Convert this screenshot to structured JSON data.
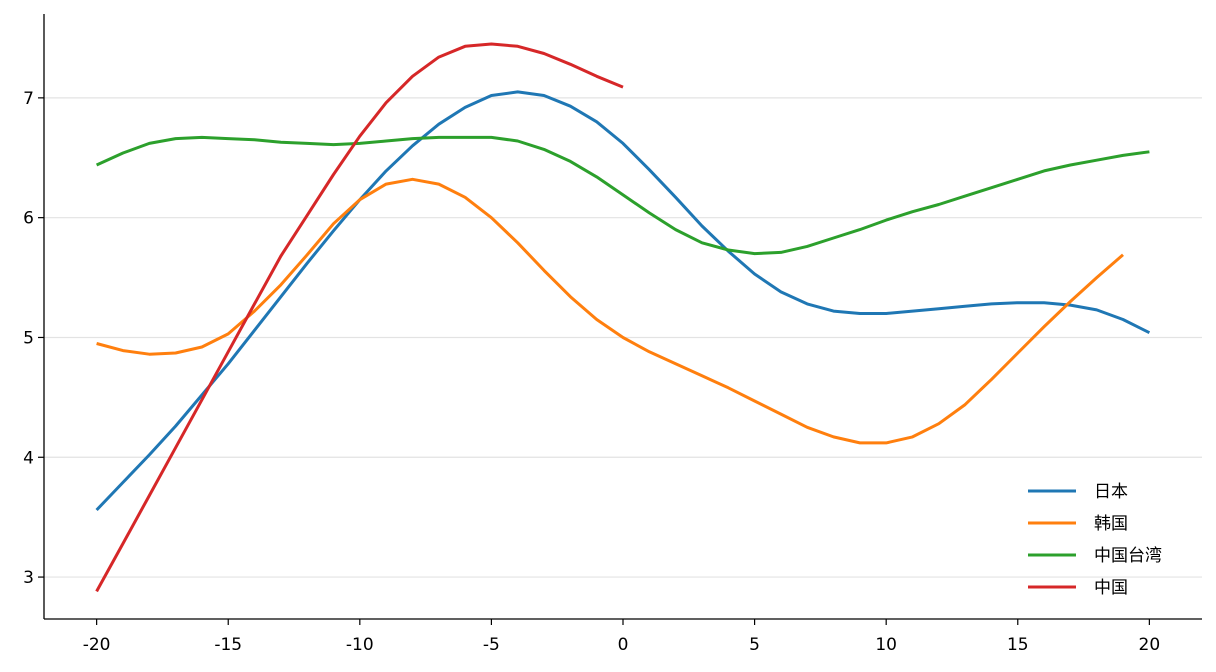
{
  "chart_data": {
    "type": "line",
    "title": "",
    "xlabel": "",
    "ylabel": "",
    "xlim": [
      -22,
      22
    ],
    "ylim": [
      2.65,
      7.7
    ],
    "xticks": [
      -20,
      -15,
      -10,
      -5,
      0,
      5,
      10,
      15,
      20
    ],
    "yticks": [
      3,
      4,
      5,
      6,
      7
    ],
    "xtick_labels": [
      "-20",
      "-15",
      "-10",
      "-5",
      "0",
      "5",
      "10",
      "15",
      "20"
    ],
    "ytick_labels": [
      "3",
      "4",
      "5",
      "6",
      "7"
    ],
    "grid": "horizontal",
    "legend_position": "lower-right",
    "series": [
      {
        "name": "日本",
        "color": "#1f77b4",
        "x": [
          -20,
          -19,
          -18,
          -17,
          -16,
          -15,
          -14,
          -13,
          -12,
          -11,
          -10,
          -9,
          -8,
          -7,
          -6,
          -5,
          -4,
          -3,
          -2,
          -1,
          0,
          1,
          2,
          3,
          4,
          5,
          6,
          7,
          8,
          9,
          10,
          11,
          12,
          13,
          14,
          15,
          16,
          17,
          18,
          19,
          20
        ],
        "y": [
          3.56,
          3.79,
          4.02,
          4.26,
          4.52,
          4.78,
          5.06,
          5.34,
          5.62,
          5.89,
          6.15,
          6.39,
          6.6,
          6.78,
          6.92,
          7.02,
          7.05,
          7.02,
          6.93,
          6.8,
          6.62,
          6.4,
          6.17,
          5.93,
          5.72,
          5.53,
          5.38,
          5.28,
          5.22,
          5.2,
          5.2,
          5.22,
          5.24,
          5.26,
          5.28,
          5.29,
          5.29,
          5.27,
          5.23,
          5.15,
          5.04
        ]
      },
      {
        "name": "韩国",
        "color": "#ff7f0e",
        "x": [
          -20,
          -19,
          -18,
          -17,
          -16,
          -15,
          -14,
          -13,
          -12,
          -11,
          -10,
          -9,
          -8,
          -7,
          -6,
          -5,
          -4,
          -3,
          -2,
          -1,
          0,
          1,
          2,
          3,
          4,
          5,
          6,
          7,
          8,
          9,
          10,
          11,
          12,
          13,
          14,
          15,
          16,
          17,
          18,
          19
        ],
        "y": [
          4.95,
          4.89,
          4.86,
          4.87,
          4.92,
          5.03,
          5.22,
          5.44,
          5.69,
          5.95,
          6.15,
          6.28,
          6.32,
          6.28,
          6.17,
          6.0,
          5.79,
          5.56,
          5.34,
          5.15,
          5.0,
          4.88,
          4.78,
          4.68,
          4.58,
          4.47,
          4.36,
          4.25,
          4.17,
          4.12,
          4.12,
          4.17,
          4.28,
          4.44,
          4.65,
          4.87,
          5.09,
          5.3,
          5.5,
          5.69
        ]
      },
      {
        "name": "中国台湾",
        "color": "#2ca02c",
        "x": [
          -20,
          -19,
          -18,
          -17,
          -16,
          -15,
          -14,
          -13,
          -12,
          -11,
          -10,
          -9,
          -8,
          -7,
          -6,
          -5,
          -4,
          -3,
          -2,
          -1,
          0,
          1,
          2,
          3,
          4,
          5,
          6,
          7,
          8,
          9,
          10,
          11,
          12,
          13,
          14,
          15,
          16,
          17,
          18,
          19,
          20
        ],
        "y": [
          6.44,
          6.54,
          6.62,
          6.66,
          6.67,
          6.66,
          6.65,
          6.63,
          6.62,
          6.61,
          6.62,
          6.64,
          6.66,
          6.67,
          6.67,
          6.67,
          6.64,
          6.57,
          6.47,
          6.34,
          6.19,
          6.04,
          5.9,
          5.79,
          5.73,
          5.7,
          5.71,
          5.76,
          5.83,
          5.9,
          5.98,
          6.05,
          6.11,
          6.18,
          6.25,
          6.32,
          6.39,
          6.44,
          6.48,
          6.52,
          6.55
        ]
      },
      {
        "name": "中国",
        "color": "#d62728",
        "x": [
          -20,
          -19,
          -18,
          -17,
          -16,
          -15,
          -14,
          -13,
          -12,
          -11,
          -10,
          -9,
          -8,
          -7,
          -6,
          -5,
          -4,
          -3,
          -2,
          -1,
          0
        ],
        "y": [
          2.88,
          3.28,
          3.68,
          4.08,
          4.48,
          4.88,
          5.28,
          5.68,
          6.02,
          6.36,
          6.68,
          6.96,
          7.18,
          7.34,
          7.43,
          7.45,
          7.43,
          7.37,
          7.28,
          7.18,
          7.09
        ]
      }
    ]
  }
}
